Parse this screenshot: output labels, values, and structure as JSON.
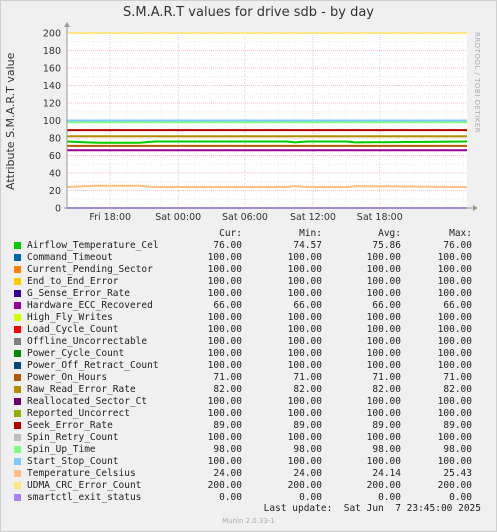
{
  "chart_data": {
    "type": "line",
    "title": "S.M.A.R.T values for drive sdb - by day",
    "ylabel": "Attribute S.M.A.R.T value",
    "xlabel": "",
    "ylim": [
      0,
      200
    ],
    "yticks": [
      0,
      20,
      40,
      60,
      80,
      100,
      120,
      140,
      160,
      180,
      200
    ],
    "x_ticks": [
      "Fri 18:00",
      "Sat 00:00",
      "Sat 06:00",
      "Sat 12:00",
      "Sat 18:00"
    ],
    "grid": true,
    "legend_placement": "bottom",
    "series": [
      {
        "name": "Airflow_Temperature_Cel",
        "color": "#00cc00",
        "cur": "76.00",
        "min": "74.57",
        "avg": "75.86",
        "max": "76.00",
        "values": [
          [
            0,
            76
          ],
          [
            0.05,
            75
          ],
          [
            0.08,
            74.6
          ],
          [
            0.18,
            74.6
          ],
          [
            0.22,
            76
          ],
          [
            0.55,
            76
          ],
          [
            0.57,
            75
          ],
          [
            0.6,
            76
          ],
          [
            0.7,
            76
          ],
          [
            0.72,
            75
          ],
          [
            1,
            76
          ]
        ]
      },
      {
        "name": "Command_Timeout",
        "color": "#0066b3",
        "cur": "100.00",
        "min": "100.00",
        "avg": "100.00",
        "max": "100.00",
        "values": [
          [
            0,
            100
          ],
          [
            1,
            100
          ]
        ]
      },
      {
        "name": "Current_Pending_Sector",
        "color": "#ff8000",
        "cur": "100.00",
        "min": "100.00",
        "avg": "100.00",
        "max": "100.00",
        "values": [
          [
            0,
            100
          ],
          [
            1,
            100
          ]
        ]
      },
      {
        "name": "End_to_End_Error",
        "color": "#ffcc00",
        "cur": "100.00",
        "min": "100.00",
        "avg": "100.00",
        "max": "100.00",
        "values": [
          [
            0,
            100
          ],
          [
            1,
            100
          ]
        ]
      },
      {
        "name": "G_Sense_Error_Rate",
        "color": "#330099",
        "cur": "100.00",
        "min": "100.00",
        "avg": "100.00",
        "max": "100.00",
        "values": [
          [
            0,
            100
          ],
          [
            1,
            100
          ]
        ]
      },
      {
        "name": "Hardware_ECC_Recovered",
        "color": "#990099",
        "cur": "66.00",
        "min": "66.00",
        "avg": "66.00",
        "max": "66.00",
        "values": [
          [
            0,
            66
          ],
          [
            1,
            66
          ]
        ]
      },
      {
        "name": "High_Fly_Writes",
        "color": "#ccff00",
        "cur": "100.00",
        "min": "100.00",
        "avg": "100.00",
        "max": "100.00",
        "values": [
          [
            0,
            100
          ],
          [
            1,
            100
          ]
        ]
      },
      {
        "name": "Load_Cycle_Count",
        "color": "#ff0000",
        "cur": "100.00",
        "min": "100.00",
        "avg": "100.00",
        "max": "100.00",
        "values": [
          [
            0,
            100
          ],
          [
            1,
            100
          ]
        ]
      },
      {
        "name": "Offline_Uncorrectable",
        "color": "#808080",
        "cur": "100.00",
        "min": "100.00",
        "avg": "100.00",
        "max": "100.00",
        "values": [
          [
            0,
            100
          ],
          [
            1,
            100
          ]
        ]
      },
      {
        "name": "Power_Cycle_Count",
        "color": "#008f00",
        "cur": "100.00",
        "min": "100.00",
        "avg": "100.00",
        "max": "100.00",
        "values": [
          [
            0,
            100
          ],
          [
            1,
            100
          ]
        ]
      },
      {
        "name": "Power_Off_Retract_Count",
        "color": "#00487d",
        "cur": "100.00",
        "min": "100.00",
        "avg": "100.00",
        "max": "100.00",
        "values": [
          [
            0,
            100
          ],
          [
            1,
            100
          ]
        ]
      },
      {
        "name": "Power_On_Hours",
        "color": "#b35a00",
        "cur": "71.00",
        "min": "71.00",
        "avg": "71.00",
        "max": "71.00",
        "values": [
          [
            0,
            71
          ],
          [
            1,
            71
          ]
        ]
      },
      {
        "name": "Raw_Read_Error_Rate",
        "color": "#b38f00",
        "cur": "82.00",
        "min": "82.00",
        "avg": "82.00",
        "max": "82.00",
        "values": [
          [
            0,
            82
          ],
          [
            1,
            82
          ]
        ]
      },
      {
        "name": "Reallocated_Sector_Ct",
        "color": "#6b006b",
        "cur": "100.00",
        "min": "100.00",
        "avg": "100.00",
        "max": "100.00",
        "values": [
          [
            0,
            100
          ],
          [
            1,
            100
          ]
        ]
      },
      {
        "name": "Reported_Uncorrect",
        "color": "#8fb300",
        "cur": "100.00",
        "min": "100.00",
        "avg": "100.00",
        "max": "100.00",
        "values": [
          [
            0,
            100
          ],
          [
            1,
            100
          ]
        ]
      },
      {
        "name": "Seek_Error_Rate",
        "color": "#b30000",
        "cur": "89.00",
        "min": "89.00",
        "avg": "89.00",
        "max": "89.00",
        "values": [
          [
            0,
            89
          ],
          [
            1,
            89
          ]
        ]
      },
      {
        "name": "Spin_Retry_Count",
        "color": "#bebebe",
        "cur": "100.00",
        "min": "100.00",
        "avg": "100.00",
        "max": "100.00",
        "values": [
          [
            0,
            100
          ],
          [
            1,
            100
          ]
        ]
      },
      {
        "name": "Spin_Up_Time",
        "color": "#80ff80",
        "cur": "98.00",
        "min": "98.00",
        "avg": "98.00",
        "max": "98.00",
        "values": [
          [
            0,
            98
          ],
          [
            1,
            98
          ]
        ]
      },
      {
        "name": "Start_Stop_Count",
        "color": "#80c9ff",
        "cur": "100.00",
        "min": "100.00",
        "avg": "100.00",
        "max": "100.00",
        "values": [
          [
            0,
            100
          ],
          [
            1,
            100
          ]
        ]
      },
      {
        "name": "Temperature_Celsius",
        "color": "#ffc080",
        "cur": "24.00",
        "min": "24.00",
        "avg": "24.14",
        "max": "25.43",
        "values": [
          [
            0,
            24
          ],
          [
            0.05,
            25
          ],
          [
            0.08,
            25.4
          ],
          [
            0.18,
            25.4
          ],
          [
            0.22,
            24
          ],
          [
            0.55,
            24
          ],
          [
            0.57,
            25
          ],
          [
            0.6,
            24
          ],
          [
            0.7,
            24
          ],
          [
            0.72,
            25
          ],
          [
            1,
            24
          ]
        ]
      },
      {
        "name": "UDMA_CRC_Error_Count",
        "color": "#ffe680",
        "cur": "200.00",
        "min": "200.00",
        "avg": "200.00",
        "max": "200.00",
        "values": [
          [
            0,
            200
          ],
          [
            1,
            200
          ]
        ]
      },
      {
        "name": "smartctl_exit_status",
        "color": "#aa80ff",
        "cur": "0.00",
        "min": "0.00",
        "avg": "0.00",
        "max": "0.00",
        "values": [
          [
            0,
            0
          ],
          [
            1,
            0
          ]
        ]
      }
    ]
  },
  "legend_header": {
    "cur": "Cur:",
    "min": "Min:",
    "avg": "Avg:",
    "max": "Max:"
  },
  "last_update": "Last update:  Sat Jun  7 23:45:00 2025",
  "vendor_text": "RRDTOOL / TOBI OETIKER",
  "footer": "Munin 2.0.33-1"
}
